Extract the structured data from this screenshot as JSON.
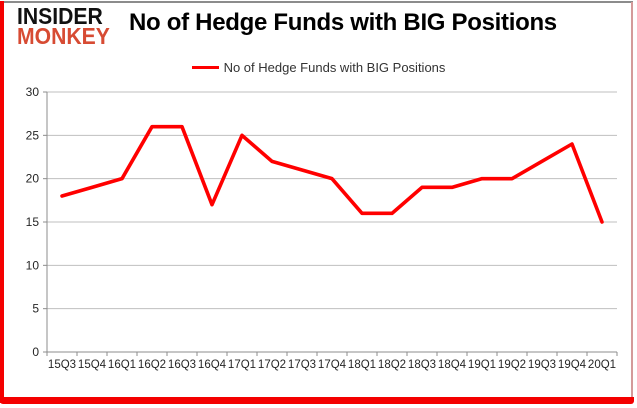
{
  "logo": {
    "line1": "INSIDER",
    "line2": "MONKEY"
  },
  "title": "No of Hedge Funds with BIG Positions",
  "legend": {
    "label": "No of Hedge Funds with BIG Positions"
  },
  "chart_data": {
    "type": "line",
    "title": "No of Hedge Funds with BIG Positions",
    "categories": [
      "15Q3",
      "15Q4",
      "16Q1",
      "16Q2",
      "16Q3",
      "16Q4",
      "17Q1",
      "17Q2",
      "17Q3",
      "17Q4",
      "18Q1",
      "18Q2",
      "18Q3",
      "18Q4",
      "19Q1",
      "19Q2",
      "19Q3",
      "19Q4",
      "20Q1"
    ],
    "series": [
      {
        "name": "No of Hedge Funds with BIG Positions",
        "values": [
          18,
          19,
          20,
          26,
          26,
          17,
          25,
          22,
          21,
          20,
          16,
          16,
          19,
          19,
          20,
          20,
          22,
          24,
          15
        ]
      }
    ],
    "xlabel": "",
    "ylabel": "",
    "ylim": [
      0,
      30
    ],
    "yticks": [
      0,
      5,
      10,
      15,
      20,
      25,
      30
    ],
    "grid": true,
    "legend_position": "top-center",
    "colors": {
      "line": "#ff0000",
      "grid": "#bfbfbf",
      "axis": "#8c8c8c",
      "tick_text": "#262626",
      "frame_red": "#f40000",
      "frame_pink": "#d49a9a",
      "frame_gray": "#8c8c8c",
      "logo_red": "#d74b33"
    }
  }
}
